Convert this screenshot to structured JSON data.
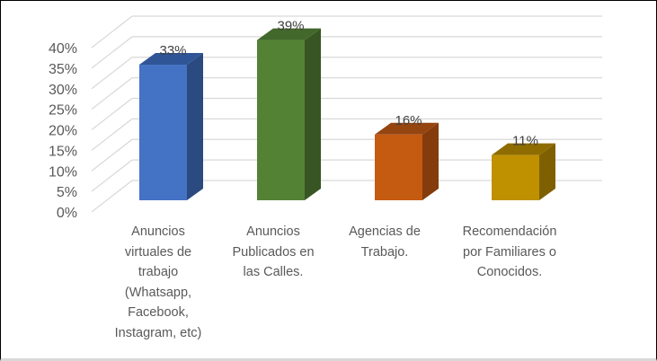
{
  "chart_data": {
    "type": "bar",
    "style": "3d-clustered-column",
    "title": "",
    "xlabel": "",
    "ylabel": "",
    "ylim": [
      0,
      0.4
    ],
    "yticks": [
      "0%",
      "5%",
      "10%",
      "15%",
      "20%",
      "25%",
      "30%",
      "35%",
      "40%"
    ],
    "grid": true,
    "legend": null,
    "categories": [
      "Anuncios virtuales de trabajo (Whatsapp, Facebook, Instagram, etc)",
      "Anuncios Publicados en las Calles.",
      "Agencias de Trabajo.",
      "Recomendación por Familiares o Conocidos."
    ],
    "values": [
      0.33,
      0.39,
      0.16,
      0.11
    ],
    "data_labels": [
      "33%",
      "39%",
      "16%",
      "11%"
    ],
    "colors": [
      "#4472c4",
      "#548235",
      "#c55a11",
      "#bf9000"
    ]
  },
  "axis": {
    "ticks": [
      "0%",
      "5%",
      "10%",
      "15%",
      "20%",
      "25%",
      "30%",
      "35%",
      "40%"
    ]
  },
  "bars": [
    {
      "label": "33%",
      "value": 0.33,
      "front": "#4472c4",
      "top": "#2f5597",
      "side": "#2b4a80",
      "category_lines": [
        "Anuncios",
        "virtuales  de",
        "trabajo",
        "(Whatsapp,",
        "Facebook,",
        "Instagram, etc)"
      ]
    },
    {
      "label": "39%",
      "value": 0.39,
      "front": "#548235",
      "top": "#43682b",
      "side": "#375623",
      "category_lines": [
        "Anuncios",
        "Publicados en",
        "las Calles."
      ]
    },
    {
      "label": "16%",
      "value": 0.16,
      "front": "#c55a11",
      "top": "#954510",
      "side": "#843c0c",
      "category_lines": [
        "Agencias de",
        "Trabajo."
      ]
    },
    {
      "label": "11%",
      "value": 0.11,
      "front": "#bf9000",
      "top": "#8f6c00",
      "side": "#7f6000",
      "category_lines": [
        "Recomendación",
        "por Familiares o",
        "Conocidos."
      ]
    }
  ]
}
